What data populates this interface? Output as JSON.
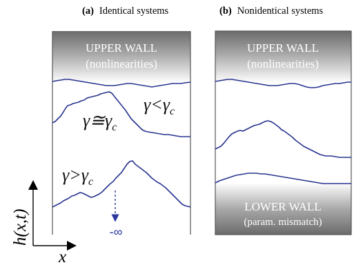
{
  "panel_a": {
    "title_prefix": "(a)",
    "title_text": "Identical systems",
    "upper_wall": {
      "line1": "UPPER WALL",
      "line2": "(nonlinearities)"
    },
    "gamma_less": {
      "left": "γ<γ",
      "sub": "c"
    },
    "gamma_approx": {
      "left": "γ≅γ",
      "sub": "c"
    },
    "gamma_greater": {
      "left": "γ>γ",
      "sub": "c"
    },
    "neg_infinity": "-∞"
  },
  "panel_b": {
    "title_prefix": "(b)",
    "title_text": "Nonidentical systems",
    "upper_wall": {
      "line1": "UPPER WALL",
      "line2": "(nonlinearities)"
    },
    "lower_wall": {
      "line1": "LOWER WALL",
      "line2": "(param. mismatch)"
    }
  },
  "axes": {
    "y_label": "h(x,t)",
    "x_label": "x"
  },
  "colors": {
    "wall_dark": "#6b6b6b",
    "wall_light": "#ffffff",
    "interface": "#27338f",
    "frame": "#555555"
  }
}
